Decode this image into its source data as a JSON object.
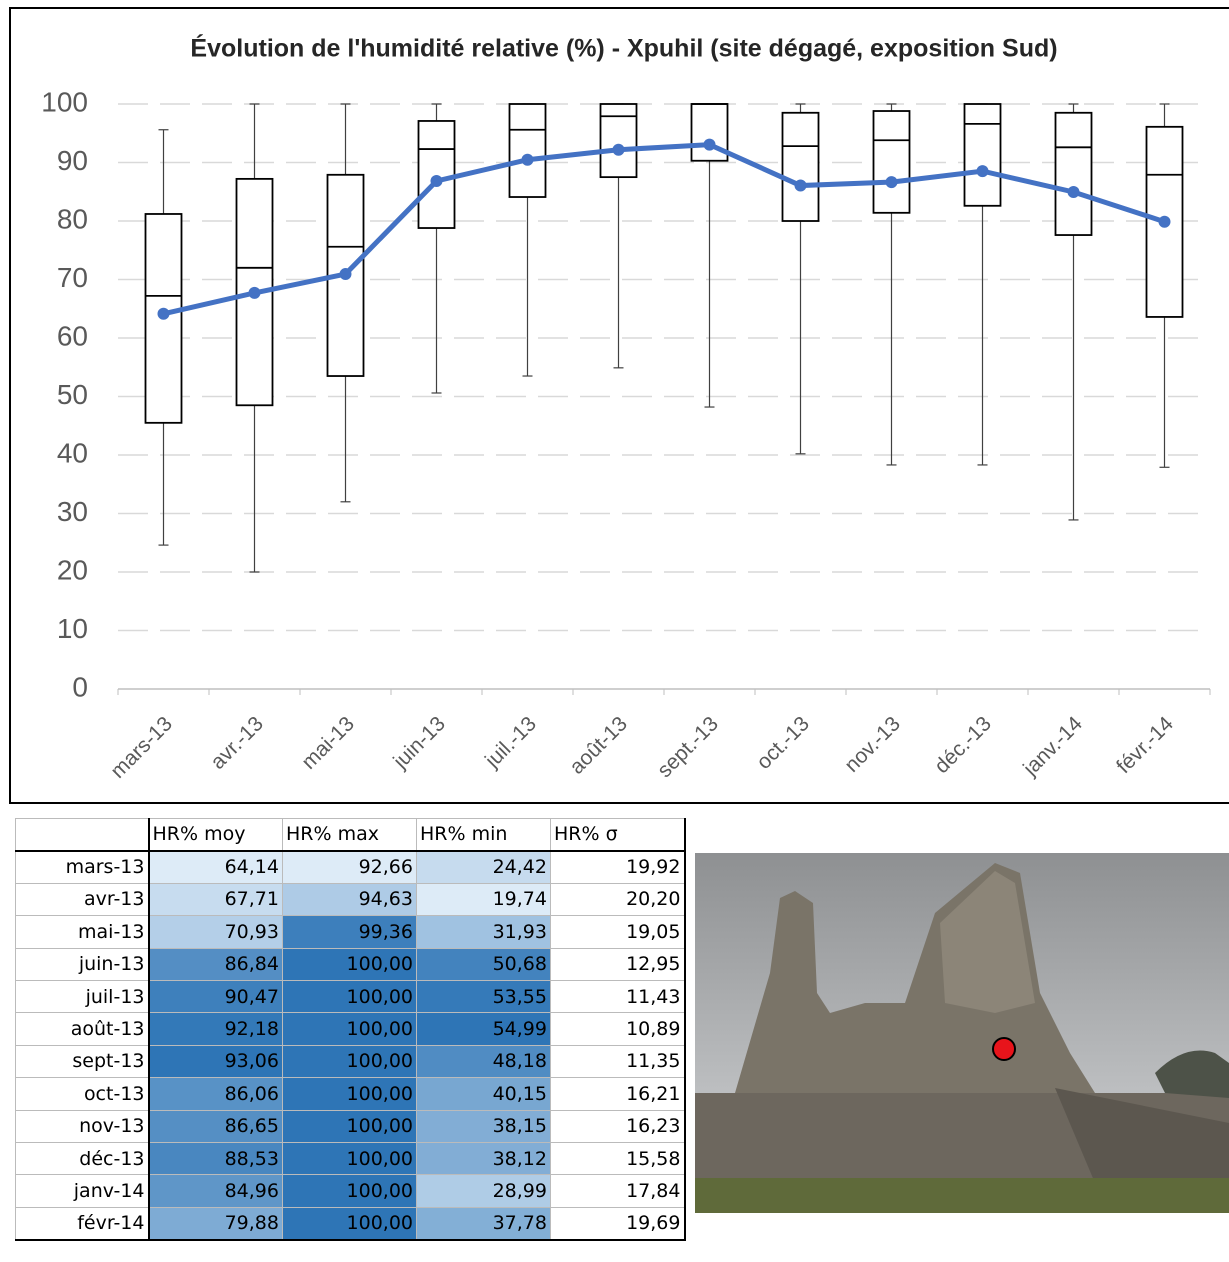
{
  "chart_data": {
    "type": "box",
    "title": "Évolution de l'humidité relative (%) - Xpuhil (site dégagé, exposition Sud)",
    "categories": [
      "mars-13",
      "avr.-13",
      "mai-13",
      "juin-13",
      "juil.-13",
      "août-13",
      "sept.-13",
      "oct.-13",
      "nov.-13",
      "déc.-13",
      "janv.-14",
      "févr.-14"
    ],
    "boxes": {
      "min": [
        24.6,
        20,
        32,
        50.6,
        53.5,
        54.9,
        48.2,
        40.2,
        38.3,
        38.3,
        28.9,
        37.9
      ],
      "q1": [
        45.5,
        48.5,
        53.5,
        78.8,
        84.1,
        87.5,
        90.3,
        80,
        81.4,
        82.6,
        77.6,
        63.6
      ],
      "median": [
        67.2,
        72,
        75.6,
        92.3,
        95.6,
        97.9,
        100,
        92.8,
        93.8,
        96.6,
        92.6,
        87.9
      ],
      "q3": [
        81.2,
        87.2,
        87.9,
        97.1,
        100,
        100,
        100,
        98.5,
        98.8,
        100,
        98.5,
        96.1
      ],
      "max": [
        95.6,
        100,
        100,
        100,
        100,
        100,
        100,
        100,
        100,
        100,
        100,
        100
      ]
    },
    "mean": {
      "color": "#4472c4",
      "values": [
        64.14,
        67.71,
        70.93,
        86.84,
        90.47,
        92.18,
        93.06,
        86.06,
        86.65,
        88.53,
        84.96,
        79.88
      ]
    },
    "ylim": [
      0,
      100
    ],
    "yticks": [
      0,
      10,
      20,
      30,
      40,
      50,
      60,
      70,
      80,
      90,
      100
    ],
    "grid": true
  },
  "table": {
    "header": [
      "HR% moy",
      "HR% max",
      "HR% min",
      "HR% σ"
    ],
    "rows": [
      [
        "mars-13",
        "64,14",
        "92,66",
        "24,42",
        "19,92"
      ],
      [
        "avr-13",
        "67,71",
        "94,63",
        "19,74",
        "20,20"
      ],
      [
        "mai-13",
        "70,93",
        "99,36",
        "31,93",
        "19,05"
      ],
      [
        "juin-13",
        "86,84",
        "100,00",
        "50,68",
        "12,95"
      ],
      [
        "juil-13",
        "90,47",
        "100,00",
        "53,55",
        "11,43"
      ],
      [
        "août-13",
        "92,18",
        "100,00",
        "54,99",
        "10,89"
      ],
      [
        "sept-13",
        "93,06",
        "100,00",
        "48,18",
        "11,35"
      ],
      [
        "oct-13",
        "86,06",
        "100,00",
        "40,15",
        "16,21"
      ],
      [
        "nov-13",
        "86,65",
        "100,00",
        "38,15",
        "16,23"
      ],
      [
        "déc-13",
        "88,53",
        "100,00",
        "38,12",
        "15,58"
      ],
      [
        "janv-14",
        "84,96",
        "100,00",
        "28,99",
        "17,84"
      ],
      [
        "févr-14",
        "79,88",
        "100,00",
        "37,78",
        "19,69"
      ]
    ]
  }
}
